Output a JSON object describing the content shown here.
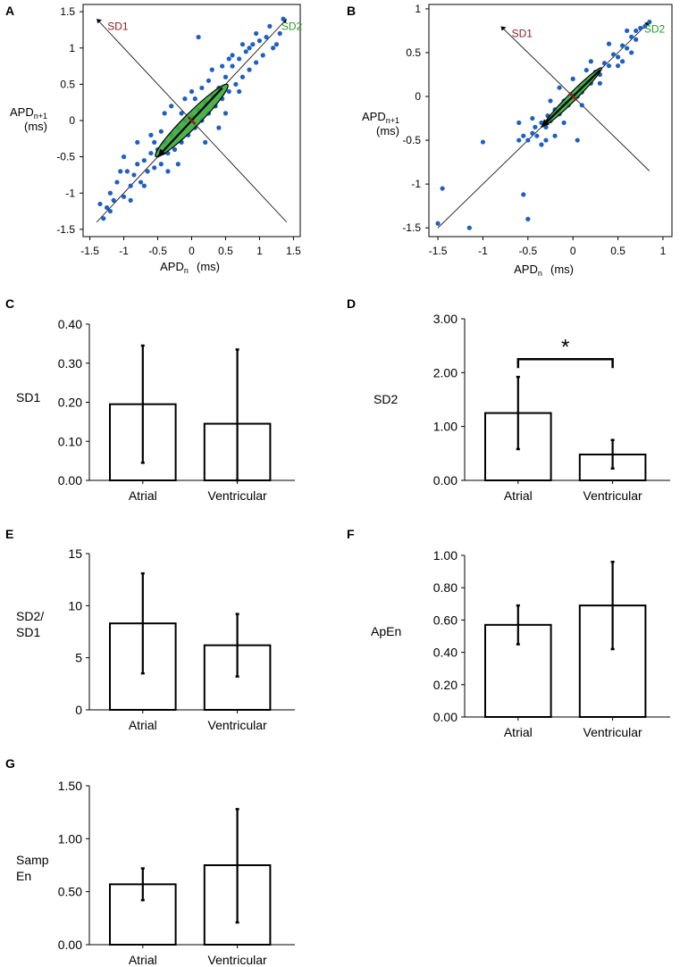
{
  "figure": {
    "panel_letters": [
      "A",
      "B",
      "C",
      "D",
      "E",
      "F",
      "G"
    ]
  },
  "colors": {
    "point": "#1f5fbf",
    "sd1_label": "#8b1a1a",
    "sd2_label": "#2a9a2a",
    "ellipse_fill": "#3aaa3a",
    "axis": "#000000",
    "bar_fill": "#ffffff"
  },
  "chart_data": [
    {
      "panel": "A",
      "type": "scatter",
      "xlabel": "APDn (ms)",
      "ylabel": "APDn+1 (ms)",
      "xlim": [
        -1.6,
        1.6
      ],
      "ylim": [
        -1.6,
        1.6
      ],
      "x_ticks": [
        -1.5,
        -1,
        -0.5,
        0,
        0.5,
        1,
        1.5
      ],
      "y_ticks": [
        -1.5,
        -1,
        -0.5,
        0,
        0.5,
        1,
        1.5
      ],
      "x_tick_labels": [
        "-1.5",
        "-1",
        "-0.5",
        "0",
        "0.5",
        "1",
        "1.5"
      ],
      "y_tick_labels": [
        "-1.5",
        "-1",
        "-0.5",
        "0",
        "0.5",
        "1",
        "1.5"
      ],
      "sd1_label": "SD1",
      "sd2_label": "SD2",
      "sd1_axis": [
        [
          1.4,
          -1.4
        ],
        [
          -1.4,
          1.4
        ]
      ],
      "sd2_axis": [
        [
          -1.4,
          -1.4
        ],
        [
          1.4,
          1.4
        ]
      ],
      "ellipse": {
        "sd1": 0.12,
        "sd2": 0.75
      },
      "sd2_arrow_tail": [
        0.45,
        0.45
      ],
      "sd2_arrow_head": [
        -0.5,
        -0.5
      ],
      "points": [
        [
          -1.3,
          -1.35
        ],
        [
          -1.25,
          -1.2
        ],
        [
          -1.2,
          -1.25
        ],
        [
          -1.15,
          -1.1
        ],
        [
          -1.1,
          -0.85
        ],
        [
          -1.05,
          -0.7
        ],
        [
          -1.0,
          -1.05
        ],
        [
          -0.95,
          -0.7
        ],
        [
          -0.9,
          -0.9
        ],
        [
          -0.85,
          -0.75
        ],
        [
          -0.8,
          -0.6
        ],
        [
          -0.75,
          -0.85
        ],
        [
          -0.7,
          -0.55
        ],
        [
          -0.65,
          -0.7
        ],
        [
          -0.6,
          -0.45
        ],
        [
          -0.55,
          -0.65
        ],
        [
          -0.5,
          -0.4
        ],
        [
          -0.45,
          -0.6
        ],
        [
          -0.4,
          -0.3
        ],
        [
          -0.35,
          -0.45
        ],
        [
          -0.3,
          -0.2
        ],
        [
          -0.25,
          -0.4
        ],
        [
          -0.2,
          -0.1
        ],
        [
          -0.15,
          -0.3
        ],
        [
          -0.1,
          0.0
        ],
        [
          -0.05,
          -0.2
        ],
        [
          0.0,
          0.05
        ],
        [
          0.05,
          -0.1
        ],
        [
          0.1,
          0.15
        ],
        [
          0.15,
          0.0
        ],
        [
          0.2,
          0.25
        ],
        [
          0.25,
          0.1
        ],
        [
          0.3,
          0.35
        ],
        [
          0.35,
          0.2
        ],
        [
          0.4,
          0.45
        ],
        [
          0.45,
          0.3
        ],
        [
          0.5,
          0.6
        ],
        [
          0.55,
          0.4
        ],
        [
          0.6,
          0.75
        ],
        [
          0.65,
          0.5
        ],
        [
          0.7,
          0.85
        ],
        [
          0.75,
          0.6
        ],
        [
          0.8,
          0.95
        ],
        [
          0.85,
          0.7
        ],
        [
          0.9,
          1.05
        ],
        [
          0.95,
          0.8
        ],
        [
          1.0,
          1.1
        ],
        [
          1.05,
          0.9
        ],
        [
          1.1,
          1.15
        ],
        [
          1.2,
          1.0
        ],
        [
          1.3,
          1.2
        ],
        [
          1.35,
          1.4
        ],
        [
          -0.6,
          -0.2
        ],
        [
          -0.3,
          0.2
        ],
        [
          0.0,
          0.4
        ],
        [
          0.3,
          0.7
        ],
        [
          -0.2,
          -0.6
        ],
        [
          0.2,
          -0.3
        ],
        [
          0.5,
          0.1
        ],
        [
          -0.8,
          -0.3
        ],
        [
          0.1,
          1.15
        ],
        [
          0.85,
          1.0
        ],
        [
          0.6,
          0.9
        ],
        [
          -0.4,
          0.1
        ],
        [
          0.4,
          -0.1
        ],
        [
          -0.7,
          -0.9
        ],
        [
          0.7,
          0.4
        ],
        [
          -1.0,
          -0.5
        ],
        [
          0.95,
          1.2
        ],
        [
          -0.1,
          0.3
        ],
        [
          0.25,
          0.55
        ],
        [
          -0.35,
          -0.7
        ],
        [
          0.15,
          0.45
        ],
        [
          -0.55,
          -0.3
        ],
        [
          0.45,
          0.75
        ],
        [
          -1.2,
          -1.0
        ],
        [
          1.15,
          1.3
        ],
        [
          -0.9,
          -1.1
        ],
        [
          0.55,
          0.85
        ],
        [
          -0.45,
          -0.15
        ],
        [
          1.25,
          1.05
        ],
        [
          -1.35,
          -1.15
        ],
        [
          0.75,
          1.05
        ],
        [
          -0.15,
          0.1
        ],
        [
          0.05,
          0.3
        ]
      ]
    },
    {
      "panel": "B",
      "type": "scatter",
      "xlabel": "APDn (ms)",
      "ylabel": "APDn+1 (ms)",
      "xlim": [
        -1.6,
        1.1
      ],
      "ylim": [
        -1.6,
        1.05
      ],
      "x_ticks": [
        -1.5,
        -1,
        -0.5,
        0,
        0.5,
        1
      ],
      "y_ticks": [
        -1.5,
        -1,
        -0.5,
        0,
        0.5,
        1
      ],
      "x_tick_labels": [
        "-1.5",
        "-1",
        "-0.5",
        "0",
        "0.5",
        "1"
      ],
      "y_tick_labels": [
        "-1.5",
        "-1",
        "-0.5",
        "0",
        "0.5",
        "1"
      ],
      "sd1_label": "SD1",
      "sd2_label": "SD2",
      "sd1_axis": [
        [
          0.85,
          -0.85
        ],
        [
          -0.8,
          0.8
        ]
      ],
      "sd2_axis": [
        [
          -1.5,
          -1.5
        ],
        [
          0.85,
          0.85
        ]
      ],
      "ellipse": {
        "sd1": 0.05,
        "sd2": 0.45
      },
      "sd2_arrow_tail": [
        0.3,
        0.3
      ],
      "sd2_arrow_head": [
        -0.35,
        -0.35
      ],
      "points": [
        [
          -1.5,
          -1.45
        ],
        [
          -1.45,
          -1.05
        ],
        [
          -1.15,
          -1.5
        ],
        [
          -1.0,
          -0.52
        ],
        [
          -0.55,
          -1.12
        ],
        [
          -0.5,
          -1.4
        ],
        [
          -0.6,
          -0.5
        ],
        [
          -0.55,
          -0.45
        ],
        [
          -0.5,
          -0.5
        ],
        [
          -0.45,
          -0.42
        ],
        [
          -0.42,
          -0.35
        ],
        [
          -0.4,
          -0.45
        ],
        [
          -0.35,
          -0.3
        ],
        [
          -0.3,
          -0.35
        ],
        [
          -0.28,
          -0.22
        ],
        [
          -0.25,
          -0.28
        ],
        [
          -0.2,
          -0.15
        ],
        [
          -0.15,
          -0.2
        ],
        [
          -0.12,
          -0.1
        ],
        [
          -0.1,
          -0.05
        ],
        [
          -0.05,
          -0.1
        ],
        [
          0.0,
          0.02
        ],
        [
          0.05,
          0.0
        ],
        [
          0.08,
          0.1
        ],
        [
          0.1,
          0.05
        ],
        [
          0.15,
          0.18
        ],
        [
          0.2,
          0.15
        ],
        [
          0.25,
          0.28
        ],
        [
          0.3,
          0.25
        ],
        [
          0.35,
          0.38
        ],
        [
          0.4,
          0.35
        ],
        [
          0.45,
          0.48
        ],
        [
          0.5,
          0.45
        ],
        [
          0.55,
          0.58
        ],
        [
          0.6,
          0.55
        ],
        [
          0.65,
          0.68
        ],
        [
          0.7,
          0.65
        ],
        [
          0.75,
          0.78
        ],
        [
          0.8,
          0.8
        ],
        [
          0.85,
          0.85
        ],
        [
          -0.3,
          -0.5
        ],
        [
          -0.2,
          -0.45
        ],
        [
          0.05,
          -0.5
        ],
        [
          -0.1,
          -0.3
        ],
        [
          0.1,
          -0.1
        ],
        [
          0.3,
          0.15
        ],
        [
          0.5,
          0.35
        ],
        [
          0.55,
          0.4
        ],
        [
          0.2,
          0.4
        ],
        [
          -0.15,
          0.1
        ],
        [
          0.0,
          0.2
        ],
        [
          -0.25,
          -0.05
        ],
        [
          0.4,
          0.6
        ],
        [
          0.6,
          0.75
        ],
        [
          -0.35,
          -0.55
        ],
        [
          -0.45,
          -0.25
        ],
        [
          -0.6,
          -0.3
        ],
        [
          0.15,
          0.3
        ],
        [
          0.65,
          0.5
        ],
        [
          0.7,
          0.75
        ]
      ]
    },
    {
      "panel": "C",
      "type": "bar",
      "ylabel": "SD1",
      "categories": [
        "Atrial",
        "Ventricular"
      ],
      "values": [
        0.195,
        0.145
      ],
      "errors_low": [
        0.045,
        0.0
      ],
      "errors_high": [
        0.345,
        0.335
      ],
      "ylim": [
        0,
        0.4
      ],
      "y_ticks": [
        0,
        0.1,
        0.2,
        0.3,
        0.4
      ],
      "y_tick_labels": [
        "0.00",
        "0.10",
        "0.20",
        "0.30",
        "0.40"
      ]
    },
    {
      "panel": "D",
      "type": "bar",
      "ylabel": "SD2",
      "categories": [
        "Atrial",
        "Ventricular"
      ],
      "values": [
        1.25,
        0.48
      ],
      "errors_low": [
        0.58,
        0.22
      ],
      "errors_high": [
        1.92,
        0.75
      ],
      "ylim": [
        0,
        3
      ],
      "y_ticks": [
        0,
        1,
        2,
        3
      ],
      "y_tick_labels": [
        "0.00",
        "1.00",
        "2.00",
        "3.00"
      ],
      "significance": {
        "label": "*",
        "bracket_value": 2.25
      }
    },
    {
      "panel": "E",
      "type": "bar",
      "ylabel": [
        "SD2/",
        "SD1"
      ],
      "categories": [
        "Atrial",
        "Ventricular"
      ],
      "values": [
        8.3,
        6.2
      ],
      "errors_low": [
        3.5,
        3.2
      ],
      "errors_high": [
        13.1,
        9.2
      ],
      "ylim": [
        0,
        15
      ],
      "y_ticks": [
        0,
        5,
        10,
        15
      ],
      "y_tick_labels": [
        "0",
        "5",
        "10",
        "15"
      ]
    },
    {
      "panel": "F",
      "type": "bar",
      "ylabel": "ApEn",
      "categories": [
        "Atrial",
        "Ventricular"
      ],
      "values": [
        0.57,
        0.69
      ],
      "errors_low": [
        0.45,
        0.42
      ],
      "errors_high": [
        0.69,
        0.96
      ],
      "ylim": [
        0,
        1
      ],
      "y_ticks": [
        0,
        0.2,
        0.4,
        0.6,
        0.8,
        1.0
      ],
      "y_tick_labels": [
        "0.00",
        "0.20",
        "0.40",
        "0.60",
        "0.80",
        "1.00"
      ]
    },
    {
      "panel": "G",
      "type": "bar",
      "ylabel": [
        "Samp",
        "En"
      ],
      "categories": [
        "Atrial",
        "Ventricular"
      ],
      "values": [
        0.57,
        0.75
      ],
      "errors_low": [
        0.42,
        0.21
      ],
      "errors_high": [
        0.72,
        1.28
      ],
      "ylim": [
        0,
        1.5
      ],
      "y_ticks": [
        0,
        0.5,
        1.0,
        1.5
      ],
      "y_tick_labels": [
        "0.00",
        "0.50",
        "1.00",
        "1.50"
      ]
    }
  ]
}
